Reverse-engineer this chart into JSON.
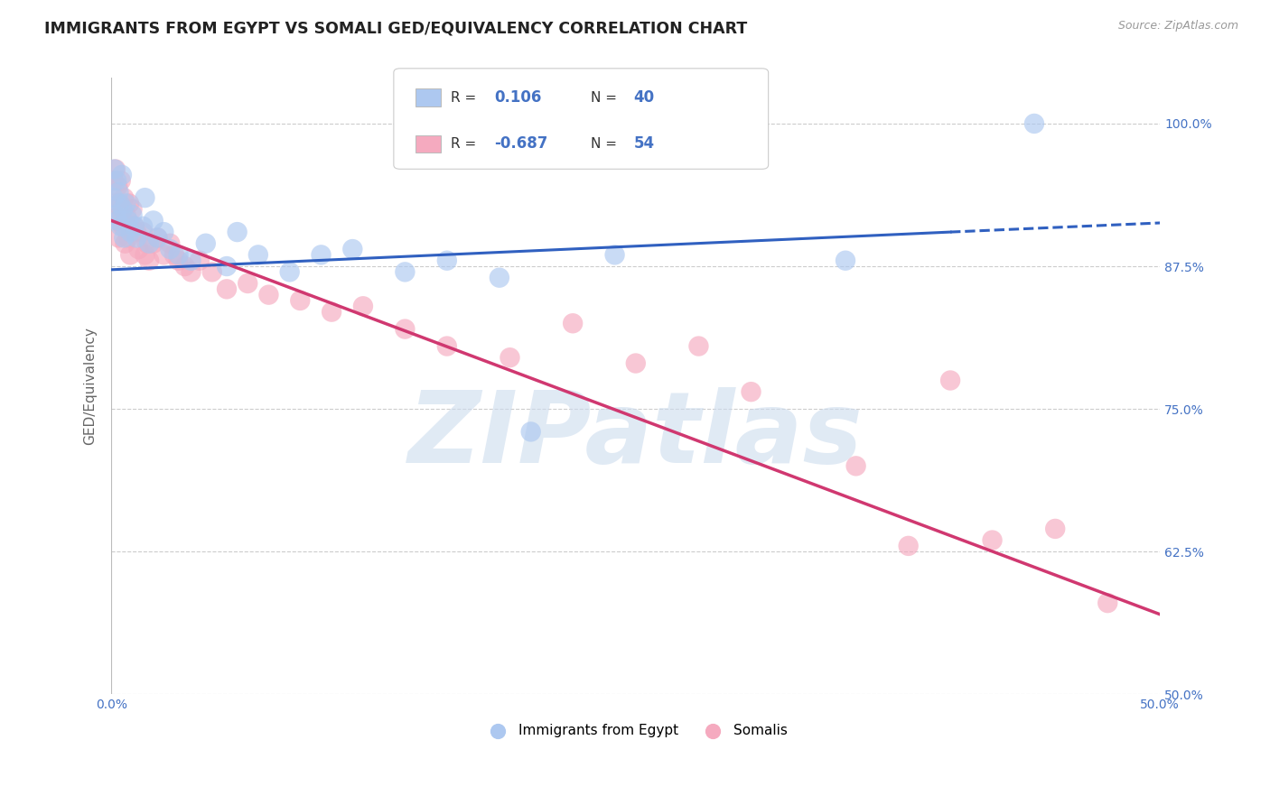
{
  "title": "IMMIGRANTS FROM EGYPT VS SOMALI GED/EQUIVALENCY CORRELATION CHART",
  "source": "Source: ZipAtlas.com",
  "ylabel": "GED/Equivalency",
  "xlim": [
    0.0,
    50.0
  ],
  "ylim": [
    50.0,
    104.0
  ],
  "yticks": [
    50.0,
    62.5,
    75.0,
    87.5,
    100.0
  ],
  "xticks": [
    0.0,
    12.5,
    25.0,
    37.5,
    50.0
  ],
  "xtick_labels": [
    "0.0%",
    "",
    "",
    "",
    "50.0%"
  ],
  "ytick_labels": [
    "50.0%",
    "62.5%",
    "75.0%",
    "87.5%",
    "100.0%"
  ],
  "legend_egypt_label": "Immigrants from Egypt",
  "legend_somali_label": "Somalis",
  "r_egypt": 0.106,
  "n_egypt": 40,
  "r_somali": -0.687,
  "n_somali": 54,
  "egypt_color": "#adc8f0",
  "somali_color": "#f5aabf",
  "egypt_line_color": "#3060c0",
  "somali_line_color": "#d03870",
  "watermark": "ZIPatlas",
  "watermark_color": "#ccdcee",
  "egypt_scatter": [
    [
      0.1,
      93.5
    ],
    [
      0.15,
      96.0
    ],
    [
      0.2,
      92.0
    ],
    [
      0.25,
      95.0
    ],
    [
      0.3,
      91.5
    ],
    [
      0.35,
      94.0
    ],
    [
      0.4,
      93.0
    ],
    [
      0.45,
      91.0
    ],
    [
      0.5,
      95.5
    ],
    [
      0.55,
      92.5
    ],
    [
      0.6,
      90.0
    ],
    [
      0.7,
      93.0
    ],
    [
      0.8,
      91.5
    ],
    [
      0.9,
      90.5
    ],
    [
      1.0,
      92.0
    ],
    [
      1.1,
      91.0
    ],
    [
      1.2,
      90.0
    ],
    [
      1.5,
      91.0
    ],
    [
      1.6,
      93.5
    ],
    [
      1.8,
      89.5
    ],
    [
      2.0,
      91.5
    ],
    [
      2.2,
      90.0
    ],
    [
      2.5,
      90.5
    ],
    [
      2.8,
      89.0
    ],
    [
      3.2,
      88.5
    ],
    [
      3.8,
      88.0
    ],
    [
      4.5,
      89.5
    ],
    [
      5.5,
      87.5
    ],
    [
      6.0,
      90.5
    ],
    [
      7.0,
      88.5
    ],
    [
      8.5,
      87.0
    ],
    [
      10.0,
      88.5
    ],
    [
      11.5,
      89.0
    ],
    [
      14.0,
      87.0
    ],
    [
      16.0,
      88.0
    ],
    [
      18.5,
      86.5
    ],
    [
      20.0,
      73.0
    ],
    [
      24.0,
      88.5
    ],
    [
      35.0,
      88.0
    ],
    [
      44.0,
      100.0
    ]
  ],
  "somali_scatter": [
    [
      0.1,
      95.0
    ],
    [
      0.15,
      93.0
    ],
    [
      0.2,
      96.0
    ],
    [
      0.25,
      91.5
    ],
    [
      0.3,
      94.5
    ],
    [
      0.35,
      90.0
    ],
    [
      0.4,
      93.0
    ],
    [
      0.45,
      95.0
    ],
    [
      0.5,
      92.0
    ],
    [
      0.55,
      91.0
    ],
    [
      0.6,
      93.5
    ],
    [
      0.65,
      89.5
    ],
    [
      0.7,
      92.0
    ],
    [
      0.75,
      91.0
    ],
    [
      0.8,
      90.0
    ],
    [
      0.85,
      93.0
    ],
    [
      0.9,
      88.5
    ],
    [
      1.0,
      92.5
    ],
    [
      1.1,
      91.0
    ],
    [
      1.2,
      90.5
    ],
    [
      1.3,
      89.0
    ],
    [
      1.5,
      90.5
    ],
    [
      1.6,
      88.5
    ],
    [
      1.7,
      89.5
    ],
    [
      1.8,
      88.0
    ],
    [
      2.0,
      89.5
    ],
    [
      2.2,
      90.0
    ],
    [
      2.5,
      88.5
    ],
    [
      2.8,
      89.5
    ],
    [
      3.0,
      88.5
    ],
    [
      3.2,
      88.0
    ],
    [
      3.5,
      87.5
    ],
    [
      3.8,
      87.0
    ],
    [
      4.2,
      88.0
    ],
    [
      4.8,
      87.0
    ],
    [
      5.5,
      85.5
    ],
    [
      6.5,
      86.0
    ],
    [
      7.5,
      85.0
    ],
    [
      9.0,
      84.5
    ],
    [
      10.5,
      83.5
    ],
    [
      12.0,
      84.0
    ],
    [
      14.0,
      82.0
    ],
    [
      16.0,
      80.5
    ],
    [
      19.0,
      79.5
    ],
    [
      22.0,
      82.5
    ],
    [
      25.0,
      79.0
    ],
    [
      28.0,
      80.5
    ],
    [
      30.5,
      76.5
    ],
    [
      35.5,
      70.0
    ],
    [
      38.0,
      63.0
    ],
    [
      40.0,
      77.5
    ],
    [
      42.0,
      63.5
    ],
    [
      45.0,
      64.5
    ],
    [
      47.5,
      58.0
    ]
  ],
  "egypt_line_solid": [
    [
      0.0,
      87.2
    ],
    [
      40.0,
      90.5
    ]
  ],
  "egypt_line_dashed": [
    [
      40.0,
      90.5
    ],
    [
      50.0,
      91.3
    ]
  ],
  "somali_line": [
    [
      0.0,
      91.5
    ],
    [
      50.0,
      57.0
    ]
  ],
  "background_color": "#ffffff",
  "grid_color": "#cccccc",
  "title_color": "#222222",
  "axis_label_color": "#666666",
  "tick_color": "#4472c4",
  "legend_text_color": "#333333",
  "legend_value_color": "#4472c4"
}
